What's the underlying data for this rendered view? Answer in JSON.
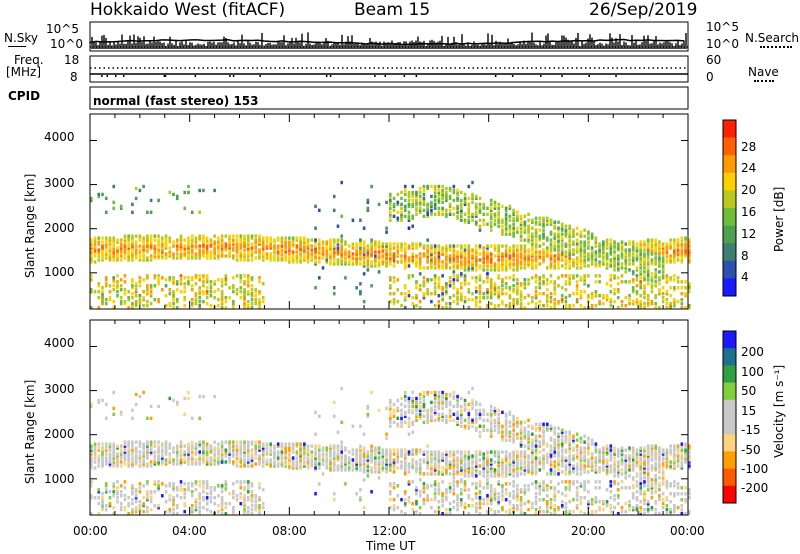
{
  "header": {
    "station": "Hokkaido West (fitACF)",
    "beam": "Beam 15",
    "date": "26/Sep/2019"
  },
  "aux_panels": {
    "nsky_label": "N.Sky",
    "nsearch_label": "N.Search",
    "noise_ticks": [
      "10^5",
      "10^0"
    ],
    "freq_label": "Freq.",
    "freq_unit": "[MHz]",
    "freq_ticks": [
      "18",
      "8"
    ],
    "nave_label": "Nave",
    "nave_ticks": [
      "60",
      "0"
    ],
    "cpid_label": "CPID",
    "cpid_value": "normal (fast stereo) 153"
  },
  "colors": {
    "power": [
      "#1a1aff",
      "#2c4fb0",
      "#3f7f6f",
      "#4ea04f",
      "#6fbd3b",
      "#b8c81c",
      "#ffd000",
      "#ff9b00",
      "#ff6000",
      "#ff2000"
    ],
    "velocity": [
      "#ff0000",
      "#ff5a00",
      "#ff9f00",
      "#ffd27f",
      "#c8c8c8",
      "#c8c8c8",
      "#7fcf3f",
      "#2fa040",
      "#1f6f8f",
      "#1a1aff"
    ]
  },
  "chart_data": [
    {
      "type": "heatmap",
      "title": "Power",
      "ylabel": "Slant Range [km]",
      "yticks": [
        "1000",
        "2000",
        "3000",
        "4000"
      ],
      "ylim": [
        180,
        4600
      ],
      "colorbar": {
        "label": "Power [dB]",
        "ticks": [
          "4",
          "8",
          "12",
          "16",
          "20",
          "24",
          "28"
        ],
        "range": [
          0,
          30
        ]
      },
      "echo_bands": [
        {
          "name": "near-range band",
          "range_km": [
            1100,
            1800
          ],
          "time_h": [
            0,
            24
          ],
          "power_db": 24
        },
        {
          "name": "far-range band",
          "range_km": [
            2000,
            2900
          ],
          "time_h": [
            12,
            22
          ],
          "power_db": 12
        }
      ]
    },
    {
      "type": "heatmap",
      "title": "Velocity",
      "ylabel": "Slant Range [km]",
      "yticks": [
        "1000",
        "2000",
        "3000",
        "4000"
      ],
      "ylim": [
        180,
        4600
      ],
      "xlabel": "Time UT",
      "xticks": [
        "00:00",
        "04:00",
        "08:00",
        "12:00",
        "16:00",
        "20:00",
        "00:00"
      ],
      "xlim": [
        0,
        24
      ],
      "colorbar": {
        "label": "Velocity [m s⁻¹]",
        "ticks": [
          "-200",
          "-100",
          "-50",
          "-15",
          "15",
          "50",
          "100",
          "200"
        ],
        "range": [
          -250,
          250
        ]
      }
    }
  ]
}
